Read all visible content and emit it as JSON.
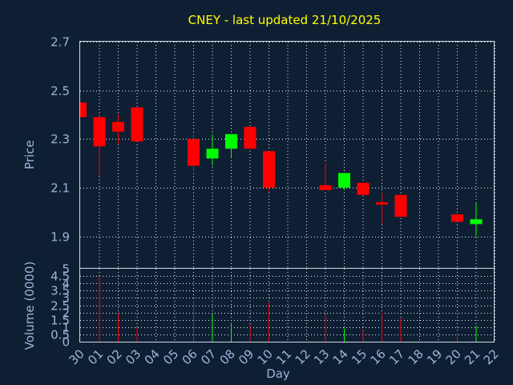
{
  "chart_data": {
    "type": "candlestick",
    "title": "CNEY - last updated 21/10/2025",
    "xlabel": "Day",
    "price_panel": {
      "ylabel": "Price",
      "ylim": [
        1.77,
        2.7
      ],
      "ticks": [
        2.7,
        2.5,
        2.3,
        2.1,
        1.9
      ],
      "tick_labels": [
        "2.7",
        "2.5",
        "2.3",
        "2.1",
        "1.9"
      ]
    },
    "volume_panel": {
      "ylabel": "Volume (0000)",
      "ylim": [
        0,
        5
      ],
      "ticks": [
        5,
        4.5,
        4,
        3.5,
        3,
        2.5,
        2,
        1.5,
        1,
        0.5,
        0
      ],
      "tick_labels": [
        "5",
        "4.5",
        "4",
        "3.5",
        "3",
        "2.5",
        "2",
        "1.5",
        "1",
        "0.5",
        "0"
      ]
    },
    "x_ticks": [
      "30",
      "01",
      "02",
      "03",
      "04",
      "05",
      "06",
      "07",
      "08",
      "09",
      "10",
      "11",
      "12",
      "13",
      "14",
      "15",
      "16",
      "17",
      "18",
      "19",
      "20",
      "21",
      "22"
    ],
    "colors": {
      "up": "#00ff00",
      "down": "#ff0000",
      "background": "#0f1f33",
      "title": "#ffff00",
      "axis_text": "#9bb4d8"
    },
    "candles": [
      {
        "day": "30",
        "open": 2.45,
        "close": 2.39,
        "high": 2.45,
        "low": 2.39,
        "volume": 0.0
      },
      {
        "day": "01",
        "open": 2.39,
        "close": 2.27,
        "high": 2.39,
        "low": 2.15,
        "volume": 4.5
      },
      {
        "day": "02",
        "open": 2.37,
        "close": 2.33,
        "high": 2.4,
        "low": 2.28,
        "volume": 1.9
      },
      {
        "day": "03",
        "open": 2.43,
        "close": 2.29,
        "high": 2.43,
        "low": 2.29,
        "volume": 1.0
      },
      {
        "day": "06",
        "open": 2.3,
        "close": 2.19,
        "high": 2.32,
        "low": 2.17,
        "volume": 2.8
      },
      {
        "day": "07",
        "open": 2.22,
        "close": 2.26,
        "high": 2.32,
        "low": 2.19,
        "volume": 1.9
      },
      {
        "day": "08",
        "open": 2.26,
        "close": 2.32,
        "high": 2.32,
        "low": 2.22,
        "volume": 1.3
      },
      {
        "day": "09",
        "open": 2.35,
        "close": 2.26,
        "high": 2.35,
        "low": 2.26,
        "volume": 1.2
      },
      {
        "day": "10",
        "open": 2.25,
        "close": 2.1,
        "high": 2.25,
        "low": 2.08,
        "volume": 2.7
      },
      {
        "day": "13",
        "open": 2.11,
        "close": 2.09,
        "high": 2.2,
        "low": 2.09,
        "volume": 1.8
      },
      {
        "day": "14",
        "open": 2.1,
        "close": 2.16,
        "high": 2.16,
        "low": 2.09,
        "volume": 0.9
      },
      {
        "day": "15",
        "open": 2.12,
        "close": 2.07,
        "high": 2.12,
        "low": 2.07,
        "volume": 0.8
      },
      {
        "day": "16",
        "open": 2.04,
        "close": 2.03,
        "high": 2.08,
        "low": 1.95,
        "volume": 2.0
      },
      {
        "day": "17",
        "open": 2.07,
        "close": 1.98,
        "high": 2.07,
        "low": 1.98,
        "volume": 1.6
      },
      {
        "day": "20",
        "open": 1.99,
        "close": 1.96,
        "high": 1.99,
        "low": 1.96,
        "volume": 0.6
      },
      {
        "day": "21",
        "open": 1.95,
        "close": 1.97,
        "high": 2.04,
        "low": 1.9,
        "volume": 1.1
      }
    ]
  }
}
